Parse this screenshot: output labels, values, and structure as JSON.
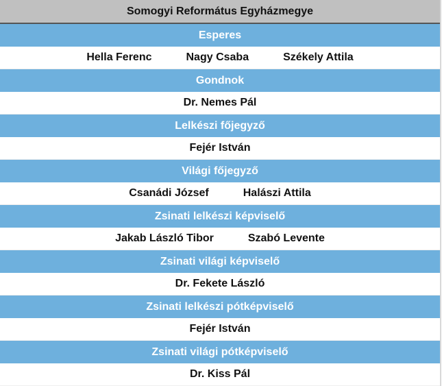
{
  "title": "Somogyi Református Egyházmegye",
  "sections": [
    {
      "role": "Esperes",
      "names": [
        "Hella Ferenc",
        "Nagy Csaba",
        "Székely Attila"
      ]
    },
    {
      "role": "Gondnok",
      "names": [
        "Dr. Nemes Pál"
      ]
    },
    {
      "role": "Lelkészi főjegyző",
      "names": [
        "Fejér István"
      ]
    },
    {
      "role": "Világi főjegyző",
      "names": [
        "Csanádi József",
        "Halászi Attila"
      ]
    },
    {
      "role": "Zsinati lelkészi képviselő",
      "names": [
        "Jakab László Tibor",
        "Szabó Levente"
      ]
    },
    {
      "role": "Zsinati világi képviselő",
      "names": [
        "Dr. Fekete László"
      ]
    },
    {
      "role": "Zsinati lelkészi pótképviselő",
      "names": [
        "Fejér István"
      ]
    },
    {
      "role": "Zsinati világi pótképviselő",
      "names": [
        "Dr. Kiss Pál"
      ]
    }
  ],
  "colors": {
    "header": "#c0c0c0",
    "role": "#6eb0dd"
  }
}
